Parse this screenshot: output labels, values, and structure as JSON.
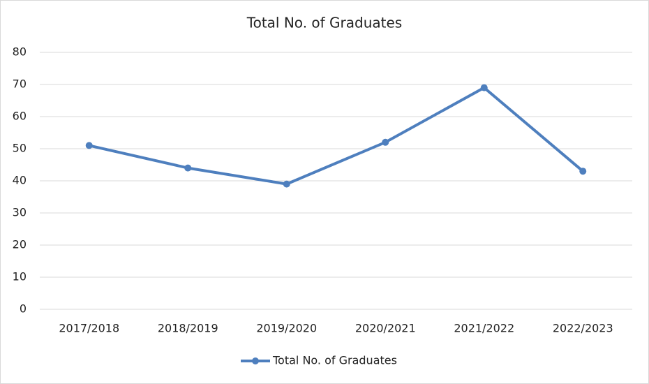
{
  "chart_data": {
    "type": "line",
    "title": "Total No. of Graduates",
    "categories": [
      "2017/2018",
      "2018/2019",
      "2019/2020",
      "2020/2021",
      "2021/2022",
      "2022/2023"
    ],
    "series": [
      {
        "name": "Total No. of Graduates",
        "color": "#4e7fbe",
        "values": [
          51,
          44,
          39,
          52,
          69,
          43
        ]
      }
    ],
    "ylim": [
      0,
      80
    ],
    "yticks": [
      0,
      10,
      20,
      30,
      40,
      50,
      60,
      70,
      80
    ],
    "grid": true,
    "legend": "bottom"
  }
}
